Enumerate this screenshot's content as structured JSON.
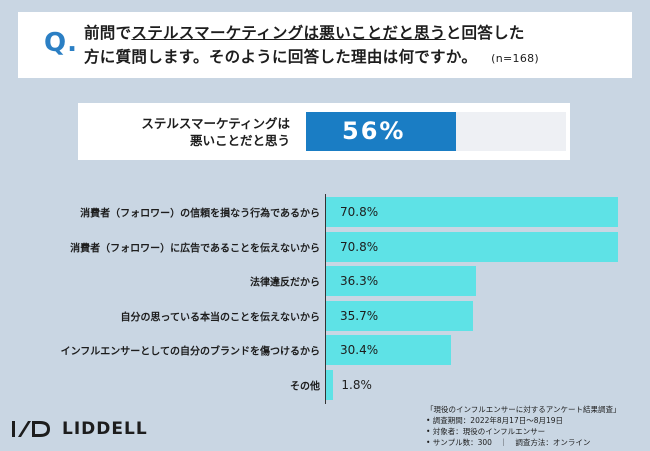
{
  "question": {
    "mark": "Q.",
    "line1_prefix": "前問で",
    "line1_underlined": "ステルスマーケティングは悪いことだと思う",
    "line1_suffix": "と回答した",
    "line2": "方に質問します。そのように回答した理由は何ですか。",
    "n": "(n=168)"
  },
  "summary": {
    "label_line1": "ステルスマーケティングは",
    "label_line2": "悪いことだと思う",
    "value_text": "56%",
    "value": 56
  },
  "chart_data": {
    "type": "bar",
    "orientation": "horizontal",
    "categories": [
      "消費者（フォロワー）の信頼を損なう行為であるから",
      "消費者（フォロワー）に広告であることを伝えないから",
      "法律違反だから",
      "自分の思っている本当のことを伝えないから",
      "インフルエンサーとしての自分のブランドを傷つけるから",
      "その他"
    ],
    "values": [
      70.8,
      70.8,
      36.3,
      35.7,
      30.4,
      1.8
    ],
    "value_labels": [
      "70.8%",
      "70.8%",
      "36.3%",
      "35.7%",
      "30.4%",
      "1.8%"
    ],
    "unit": "%",
    "xlim": [
      0,
      70.8
    ],
    "bar_color": "#5ee2e6"
  },
  "logo": {
    "text": "LIDDELL"
  },
  "footnote": {
    "title": "「現役のインフルエンサーに対するアンケート結果調査」",
    "period": "• 調査期間：2022年8月17日〜8月19日",
    "target": "• 対象者：現役のインフルエンサー",
    "sample": "• サンプル数：300",
    "separator": "｜",
    "method": "調査方法：オンライン"
  },
  "colors": {
    "background": "#c9d6e3",
    "accent": "#1a7dc4",
    "q_mark": "#2b7fc4"
  }
}
